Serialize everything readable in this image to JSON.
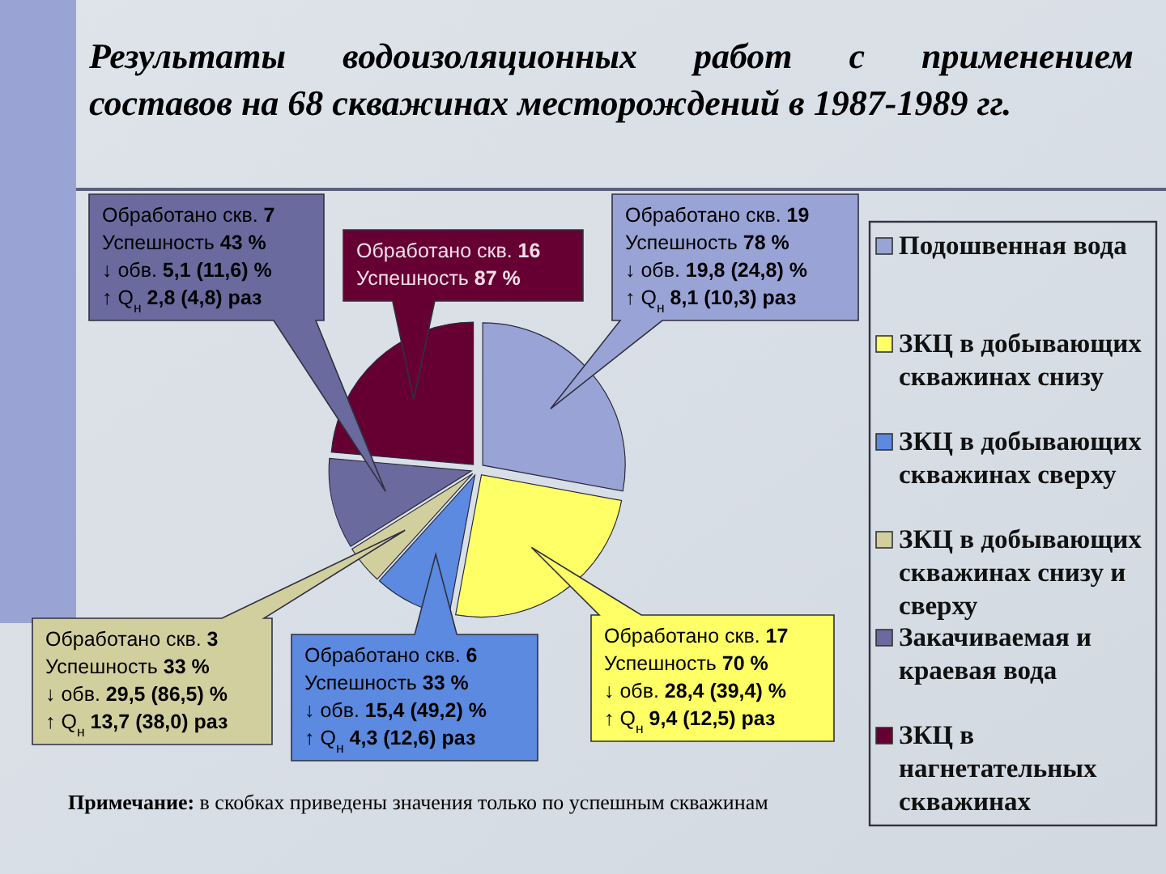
{
  "chart_data": {
    "type": "pie",
    "title": "Результаты водоизоляционных работ с применением составов на 68 скважинах месторождений в 1987-1989 гг.",
    "categories": [
      "Подошвенная вода",
      "ЗКЦ в добывающих скважинах снизу",
      "ЗКЦ в добывающих скважинах сверху",
      "ЗКЦ в добывающих скважинах снизу и сверху",
      "Закачиваемая и краевая вода",
      "ЗКЦ в нагнетательных скважинах"
    ],
    "values": [
      27.9,
      25.0,
      8.8,
      4.4,
      10.3,
      23.6
    ],
    "colors": [
      "#9aa3d6",
      "#ffff66",
      "#5b8ae0",
      "#d2cf9e",
      "#6a6a9e",
      "#660033"
    ],
    "legend": "right",
    "annotations": [
      "Обработано скв. 19\nУспешность 78 %\n↓ обв. 19,8 (24,8) %\n↑ Q$_{н}$ 8,1 (10,3) раз",
      "Обработано скв. 17\nУспешность 70 %\n↓ обв. 28,4 (39,4) %\n↑ Q$_{н}$ 9,4 (12,5) раз",
      "Обработано скв. 6\nУспешность 33 %\n↓ обв. 15,4 (49,2) %\n↑ Q$_{н}$ 4,3 (12,6) раз",
      "Обработано скв. 3\nУспешность 33 %\n↓ обв. 29,5 (86,5) %\n↑ Q$_{н}$ 13,7 (38,0) раз",
      "Обработано скв. 7\nУспешность 43 %\n↓ обв. 5,1 (11,6) %\n↑ Q$_{н}$ 2,8 (4,8) раз",
      "Обработано скв. 16\nУспешность 87 %",
      "Примечание: в скобках приведены значения только по успешным скважинам"
    ]
  }
}
